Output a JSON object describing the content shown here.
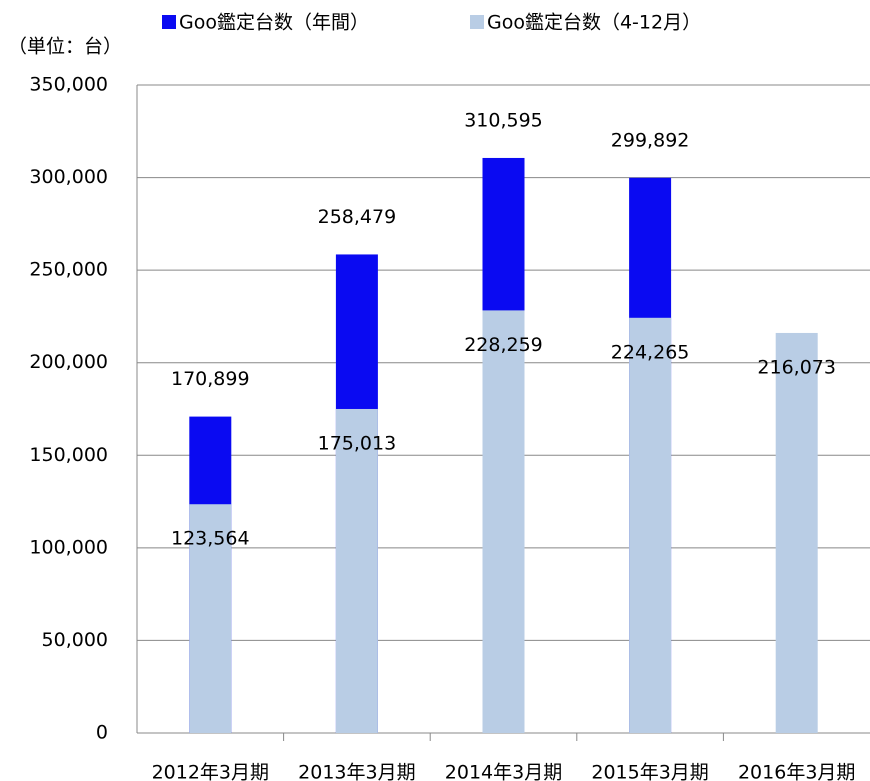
{
  "chart_data": {
    "type": "bar",
    "unit_label": "（単位：台）",
    "categories": [
      "2012年3月期",
      "2013年3月期",
      "2014年3月期",
      "2015年3月期",
      "2016年3月期"
    ],
    "series": [
      {
        "name": "Goo鑑定台数（年間）",
        "color": "#0a0af2",
        "values": [
          170899,
          258479,
          310595,
          299892,
          null
        ],
        "value_labels": [
          "170,899",
          "258,479",
          "310,595",
          "299,892",
          null
        ]
      },
      {
        "name": "Goo鑑定台数（4-12月）",
        "color": "#b9cde5",
        "values": [
          123564,
          175013,
          228259,
          224265,
          216073
        ],
        "value_labels": [
          "123,564",
          "175,013",
          "228,259",
          "224,265",
          "216,073"
        ]
      }
    ],
    "ylim": [
      0,
      350000
    ],
    "yticks": [
      0,
      {
        "value": 50000,
        "label": "50,000"
      },
      {
        "value": 100000,
        "label": "100,000"
      },
      {
        "value": 150000,
        "label": "150,000"
      },
      {
        "value": 200000,
        "label": "200,000"
      },
      {
        "value": 250000,
        "label": "250,000"
      },
      {
        "value": 300000,
        "label": "300,000"
      },
      {
        "value": 350000,
        "label": "350,000"
      }
    ],
    "grid": true
  }
}
